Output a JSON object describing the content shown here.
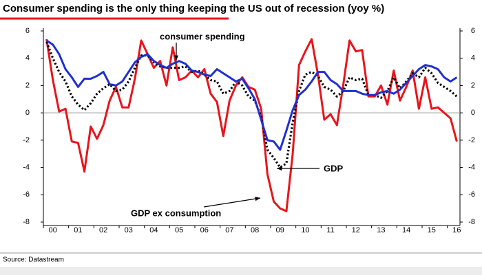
{
  "chart_data": {
    "type": "line",
    "title": "Consumer spending is the only thing keeping the US out of recession (yoy %)",
    "source": "Source: Datastream",
    "annotations": [
      "consumer spending",
      "GDP",
      "GDP ex consumption"
    ],
    "categories": [
      null,
      "00",
      null,
      null,
      null,
      "01",
      null,
      null,
      null,
      "02",
      null,
      null,
      null,
      "03",
      null,
      null,
      null,
      "04",
      null,
      null,
      null,
      "05",
      null,
      null,
      null,
      "06",
      null,
      null,
      null,
      "07",
      null,
      null,
      null,
      "08",
      null,
      null,
      null,
      "09",
      null,
      null,
      null,
      "10",
      null,
      null,
      null,
      "11",
      null,
      null,
      null,
      "12",
      null,
      null,
      null,
      "13",
      null,
      null,
      null,
      "14",
      null,
      null,
      null,
      "15",
      null,
      null,
      null,
      "16"
    ],
    "series": [
      {
        "name": "consumer spending",
        "color": "#1f2fd0",
        "style": "solid",
        "values": [
          5.3,
          5.0,
          4.3,
          3.2,
          2.6,
          1.9,
          2.5,
          2.5,
          2.7,
          3.0,
          2.1,
          2.0,
          2.3,
          3.0,
          3.7,
          4.1,
          4.3,
          3.8,
          3.5,
          3.3,
          3.6,
          3.8,
          3.6,
          3.1,
          3.0,
          2.8,
          2.7,
          3.2,
          2.9,
          2.6,
          2.3,
          2.5,
          1.8,
          1.0,
          -0.5,
          -2.0,
          -2.1,
          -2.7,
          -1.3,
          0.2,
          1.3,
          1.7,
          2.3,
          3.0,
          3.0,
          2.4,
          2.1,
          1.6,
          1.6,
          1.6,
          1.4,
          1.3,
          1.3,
          1.5,
          1.6,
          1.4,
          1.7,
          2.2,
          2.7,
          3.2,
          3.5,
          3.4,
          3.2,
          2.6,
          2.3,
          2.6
        ]
      },
      {
        "name": "GDP",
        "color": "#000000",
        "style": "dotted",
        "values": [
          5.2,
          4.0,
          3.0,
          2.3,
          1.2,
          0.6,
          0.2,
          0.7,
          1.4,
          1.8,
          2.1,
          1.6,
          1.7,
          2.3,
          3.3,
          4.2,
          4.2,
          3.7,
          3.4,
          3.3,
          3.3,
          3.3,
          3.4,
          3.0,
          3.1,
          2.8,
          2.4,
          2.3,
          1.4,
          1.6,
          2.3,
          2.0,
          1.2,
          0.9,
          -0.3,
          -2.7,
          -3.3,
          -4.0,
          -3.7,
          -0.7,
          1.6,
          2.8,
          3.0,
          2.7,
          1.9,
          1.7,
          1.2,
          1.6,
          2.6,
          2.4,
          2.5,
          1.3,
          1.3,
          1.1,
          1.6,
          2.6,
          1.8,
          2.3,
          2.9,
          2.6,
          3.3,
          2.9,
          2.2,
          1.9,
          1.6,
          1.2
        ]
      },
      {
        "name": "GDP ex consumption",
        "color": "#e8141b",
        "style": "solid",
        "values": [
          5.4,
          2.4,
          0.1,
          0.3,
          -2.1,
          -2.2,
          -4.3,
          -1.0,
          -1.9,
          -0.9,
          0.9,
          1.9,
          0.4,
          0.4,
          2.5,
          5.3,
          4.3,
          3.3,
          3.8,
          2.0,
          4.8,
          2.4,
          2.6,
          3.1,
          2.6,
          3.2,
          1.4,
          0.8,
          -1.7,
          0.9,
          2.0,
          2.6,
          1.9,
          1.7,
          0.3,
          -4.5,
          -6.5,
          -7.0,
          -7.2,
          -3.0,
          3.5,
          4.5,
          5.4,
          2.8,
          -0.5,
          -0.1,
          -0.9,
          2.0,
          5.3,
          4.5,
          4.6,
          1.2,
          1.2,
          2.0,
          0.6,
          3.1,
          0.9,
          1.9,
          3.1,
          0.3,
          2.6,
          0.3,
          0.4,
          0.0,
          -0.4,
          -2.1
        ]
      }
    ],
    "ylim": [
      -8,
      6
    ],
    "yticks": [
      -8,
      -6,
      -4,
      -2,
      0,
      2,
      4,
      6
    ],
    "y2lim": [
      -8,
      6
    ],
    "y2ticks": [
      -8,
      -6,
      -4,
      -2,
      0,
      2,
      4,
      6
    ],
    "legend": false,
    "grid": false
  }
}
